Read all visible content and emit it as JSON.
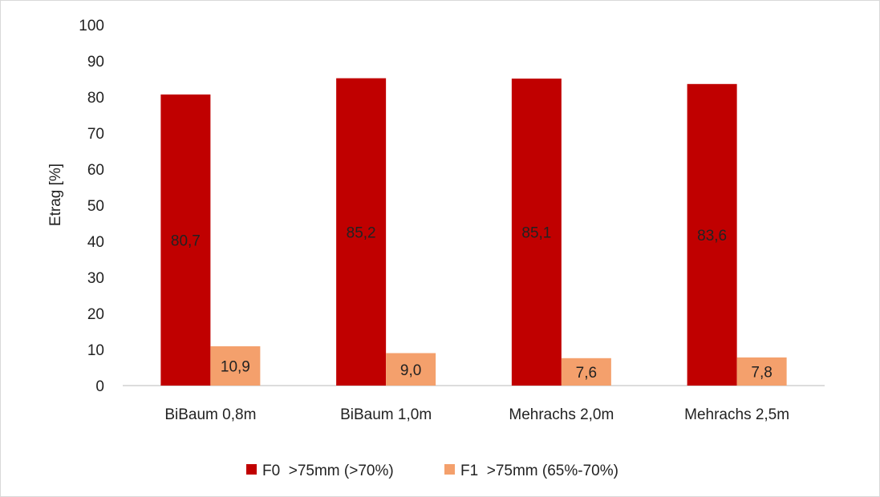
{
  "chart_data": {
    "type": "bar",
    "categories": [
      "BiBaum 0,8m",
      "BiBaum 1,0m",
      "Mehrachs 2,0m",
      "Mehrachs 2,5m"
    ],
    "series": [
      {
        "name": "F0  >75mm (>70%)",
        "values": [
          80.7,
          85.2,
          85.1,
          83.6
        ],
        "labels": [
          "80,7",
          "85,2",
          "85,1",
          "83,6"
        ],
        "color": "#c00000"
      },
      {
        "name": "F1  >75mm (65%-70%)",
        "values": [
          10.9,
          9.0,
          7.6,
          7.8
        ],
        "labels": [
          "10,9",
          "9,0",
          "7,6",
          "7,8"
        ],
        "color": "#f4a06c"
      }
    ],
    "title": "",
    "xlabel": "",
    "ylabel": "Etrag [%]",
    "ylim": [
      0,
      100
    ],
    "yticks": [
      0,
      10,
      20,
      30,
      40,
      50,
      60,
      70,
      80,
      90,
      100
    ],
    "grid": false,
    "legend": "bottom"
  }
}
